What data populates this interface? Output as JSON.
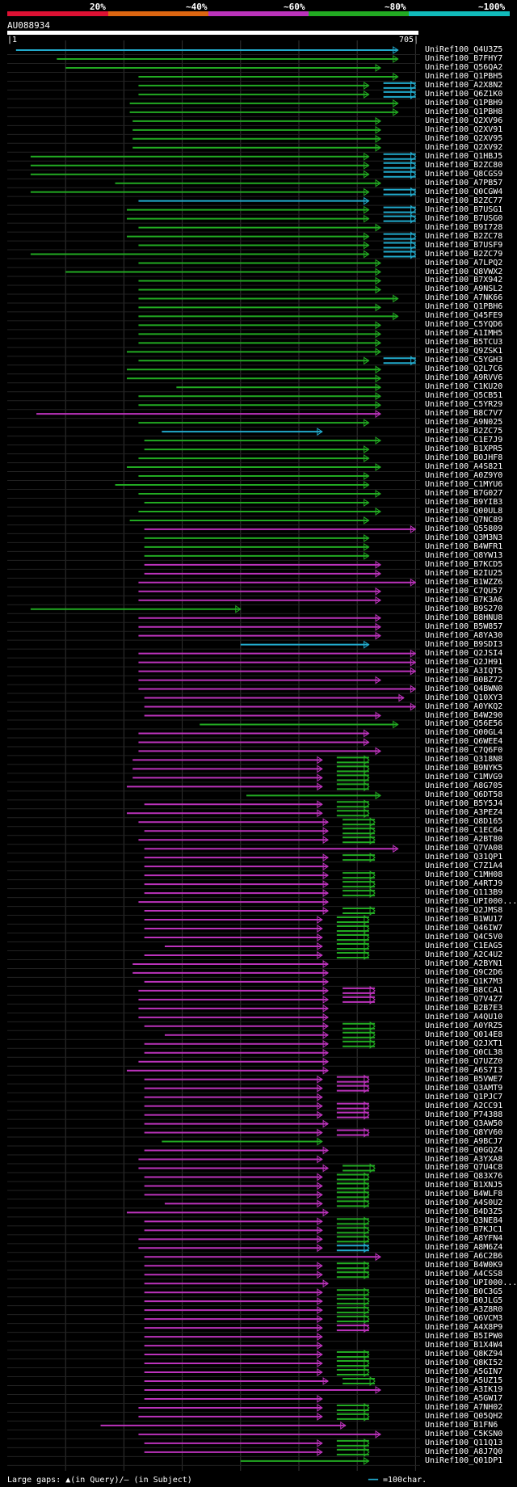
{
  "header": {
    "percent_labels": [
      "20%",
      "~40%",
      "~60%",
      "~80%",
      "~100%"
    ],
    "colors": {
      "green": "#22aa22",
      "magenta": "#bb33bb",
      "cyan": "#22aacc",
      "red": "#dd1133",
      "orange": "#dd6611",
      "teal": "#11bbbb",
      "gridline": "#333333"
    },
    "query_id": "AU088934",
    "start_tick": "|1",
    "end_tick": "705|"
  },
  "query_length": 705,
  "hits": [
    {
      "id": "UniRef100_Q4U3Z5",
      "color": "cyan",
      "start": 15,
      "end": 670
    },
    {
      "id": "UniRef100_B7FHY7",
      "color": "green",
      "start": 85,
      "end": 670
    },
    {
      "id": "UniRef100_Q56QA2",
      "color": "green",
      "start": 100,
      "end": 640
    },
    {
      "id": "UniRef100_Q1PBH5",
      "color": "green",
      "start": 225,
      "end": 670
    },
    {
      "id": "UniRef100_A2X8N2",
      "color": "green",
      "start": 225,
      "end": 620,
      "ext": "cyan"
    },
    {
      "id": "UniRef100_Q6Z1K0",
      "color": "green",
      "start": 225,
      "end": 620,
      "ext": "cyan"
    },
    {
      "id": "UniRef100_Q1PBH9",
      "color": "green",
      "start": 210,
      "end": 670
    },
    {
      "id": "UniRef100_Q1PBH8",
      "color": "green",
      "start": 210,
      "end": 670
    },
    {
      "id": "UniRef100_Q2XV96",
      "color": "green",
      "start": 215,
      "end": 640
    },
    {
      "id": "UniRef100_Q2XV91",
      "color": "green",
      "start": 215,
      "end": 640
    },
    {
      "id": "UniRef100_Q2XV95",
      "color": "green",
      "start": 215,
      "end": 640
    },
    {
      "id": "UniRef100_Q2XV92",
      "color": "green",
      "start": 215,
      "end": 640
    },
    {
      "id": "UniRef100_Q1HBJ5",
      "color": "green",
      "start": 40,
      "end": 620,
      "ext": "cyan"
    },
    {
      "id": "UniRef100_B2ZC80",
      "color": "green",
      "start": 40,
      "end": 620,
      "ext": "cyan"
    },
    {
      "id": "UniRef100_Q8CGS9",
      "color": "green",
      "start": 40,
      "end": 620,
      "ext": "cyan"
    },
    {
      "id": "UniRef100_A7PB57",
      "color": "green",
      "start": 185,
      "end": 640
    },
    {
      "id": "UniRef100_Q0CGW4",
      "color": "green",
      "start": 40,
      "end": 620,
      "ext": "cyan"
    },
    {
      "id": "UniRef100_B2ZC77",
      "color": "cyan",
      "start": 225,
      "end": 620
    },
    {
      "id": "UniRef100_B7USG1",
      "color": "green",
      "start": 205,
      "end": 620,
      "ext": "cyan"
    },
    {
      "id": "UniRef100_B7USG0",
      "color": "green",
      "start": 205,
      "end": 620,
      "ext": "cyan"
    },
    {
      "id": "UniRef100_B9I728",
      "color": "green",
      "start": 225,
      "end": 640
    },
    {
      "id": "UniRef100_B2ZC78",
      "color": "green",
      "start": 205,
      "end": 620,
      "ext": "cyan"
    },
    {
      "id": "UniRef100_B7USF9",
      "color": "green",
      "start": 225,
      "end": 620,
      "ext": "cyan"
    },
    {
      "id": "UniRef100_B2ZC79",
      "color": "green",
      "start": 40,
      "end": 620,
      "ext": "cyan"
    },
    {
      "id": "UniRef100_A7LPQ2",
      "color": "green",
      "start": 225,
      "end": 640
    },
    {
      "id": "UniRef100_Q8VWX2",
      "color": "green",
      "start": 100,
      "end": 640
    },
    {
      "id": "UniRef100_B7X942",
      "color": "green",
      "start": 225,
      "end": 640
    },
    {
      "id": "UniRef100_A9NSL2",
      "color": "green",
      "start": 225,
      "end": 640
    },
    {
      "id": "UniRef100_A7NK66",
      "color": "green",
      "start": 225,
      "end": 670
    },
    {
      "id": "UniRef100_Q1PBH6",
      "color": "green",
      "start": 225,
      "end": 640
    },
    {
      "id": "UniRef100_Q45FE9",
      "color": "green",
      "start": 225,
      "end": 670
    },
    {
      "id": "UniRef100_C5YQD6",
      "color": "green",
      "start": 225,
      "end": 640
    },
    {
      "id": "UniRef100_A1IMH5",
      "color": "green",
      "start": 225,
      "end": 640
    },
    {
      "id": "UniRef100_B5TCU3",
      "color": "green",
      "start": 225,
      "end": 640
    },
    {
      "id": "UniRef100_Q9ZSK1",
      "color": "green",
      "start": 205,
      "end": 640
    },
    {
      "id": "UniRef100_C5YGH3",
      "color": "green",
      "start": 225,
      "end": 620,
      "ext": "cyan"
    },
    {
      "id": "UniRef100_Q2L7C6",
      "color": "green",
      "start": 205,
      "end": 640
    },
    {
      "id": "UniRef100_A9RVV6",
      "color": "green",
      "start": 205,
      "end": 640
    },
    {
      "id": "UniRef100_C1KU20",
      "color": "green",
      "start": 290,
      "end": 640
    },
    {
      "id": "UniRef100_Q5CB51",
      "color": "green",
      "start": 225,
      "end": 640
    },
    {
      "id": "UniRef100_C5YR29",
      "color": "green",
      "start": 225,
      "end": 640
    },
    {
      "id": "UniRef100_B8C7V7",
      "color": "magenta",
      "start": 50,
      "end": 640
    },
    {
      "id": "UniRef100_A9N025",
      "color": "green",
      "start": 225,
      "end": 620
    },
    {
      "id": "UniRef100_B2ZC75",
      "color": "cyan",
      "start": 265,
      "end": 540
    },
    {
      "id": "UniRef100_C1E7J9",
      "color": "green",
      "start": 235,
      "end": 640
    },
    {
      "id": "UniRef100_B1XPR5",
      "color": "green",
      "start": 235,
      "end": 620
    },
    {
      "id": "UniRef100_B0JHF8",
      "color": "green",
      "start": 225,
      "end": 620
    },
    {
      "id": "UniRef100_A4S821",
      "color": "green",
      "start": 205,
      "end": 640
    },
    {
      "id": "UniRef100_A0Z9Y0",
      "color": "green",
      "start": 225,
      "end": 620
    },
    {
      "id": "UniRef100_C1MYU6",
      "color": "green",
      "start": 185,
      "end": 620
    },
    {
      "id": "UniRef100_B7G027",
      "color": "green",
      "start": 225,
      "end": 640
    },
    {
      "id": "UniRef100_B9YIB3",
      "color": "green",
      "start": 235,
      "end": 620
    },
    {
      "id": "UniRef100_Q00UL8",
      "color": "green",
      "start": 225,
      "end": 640
    },
    {
      "id": "UniRef100_Q7NC89",
      "color": "green",
      "start": 210,
      "end": 620
    },
    {
      "id": "UniRef100_Q55809",
      "color": "magenta",
      "start": 235,
      "end": 700
    },
    {
      "id": "UniRef100_Q3M3N3",
      "color": "green",
      "start": 235,
      "end": 620
    },
    {
      "id": "UniRef100_B4WFR1",
      "color": "green",
      "start": 235,
      "end": 620
    },
    {
      "id": "UniRef100_Q8YW13",
      "color": "green",
      "start": 235,
      "end": 620
    },
    {
      "id": "UniRef100_B7KCD5",
      "color": "magenta",
      "start": 235,
      "end": 640
    },
    {
      "id": "UniRef100_B2IU25",
      "color": "magenta",
      "start": 235,
      "end": 640
    },
    {
      "id": "UniRef100_B1WZZ6",
      "color": "magenta",
      "start": 225,
      "end": 700
    },
    {
      "id": "UniRef100_C7QU57",
      "color": "magenta",
      "start": 225,
      "end": 640
    },
    {
      "id": "UniRef100_B7K3A6",
      "color": "magenta",
      "start": 225,
      "end": 640
    },
    {
      "id": "UniRef100_B9S270",
      "color": "green",
      "start": 40,
      "end": 400
    },
    {
      "id": "UniRef100_B8HNU8",
      "color": "magenta",
      "start": 225,
      "end": 640
    },
    {
      "id": "UniRef100_B5W857",
      "color": "magenta",
      "start": 225,
      "end": 640
    },
    {
      "id": "UniRef100_A8YA30",
      "color": "magenta",
      "start": 225,
      "end": 640
    },
    {
      "id": "UniRef100_B9SDI3",
      "color": "cyan",
      "start": 400,
      "end": 620
    },
    {
      "id": "UniRef100_Q2JSI4",
      "color": "magenta",
      "start": 225,
      "end": 700
    },
    {
      "id": "UniRef100_Q2JH91",
      "color": "magenta",
      "start": 225,
      "end": 700
    },
    {
      "id": "UniRef100_A3IQT5",
      "color": "magenta",
      "start": 225,
      "end": 700
    },
    {
      "id": "UniRef100_B0BZ72",
      "color": "magenta",
      "start": 225,
      "end": 640
    },
    {
      "id": "UniRef100_Q4BWN0",
      "color": "magenta",
      "start": 225,
      "end": 700
    },
    {
      "id": "UniRef100_Q10XY3",
      "color": "magenta",
      "start": 235,
      "end": 680
    },
    {
      "id": "UniRef100_A0YKQ2",
      "color": "magenta",
      "start": 235,
      "end": 700
    },
    {
      "id": "UniRef100_B4W290",
      "color": "magenta",
      "start": 235,
      "end": 640
    },
    {
      "id": "UniRef100_Q56E56",
      "color": "green",
      "start": 330,
      "end": 670
    },
    {
      "id": "UniRef100_Q00GL4",
      "color": "magenta",
      "start": 225,
      "end": 620
    },
    {
      "id": "UniRef100_Q6WEE4",
      "color": "magenta",
      "start": 225,
      "end": 620
    },
    {
      "id": "UniRef100_C7Q6F0",
      "color": "magenta",
      "start": 225,
      "end": 640
    },
    {
      "id": "UniRef100_Q318N8",
      "color": "magenta",
      "start": 215,
      "end": 540,
      "ext": "green"
    },
    {
      "id": "UniRef100_B9NYK5",
      "color": "magenta",
      "start": 215,
      "end": 540,
      "ext": "green"
    },
    {
      "id": "UniRef100_C1MVG9",
      "color": "magenta",
      "start": 215,
      "end": 540,
      "ext": "green"
    },
    {
      "id": "UniRef100_A8G705",
      "color": "magenta",
      "start": 205,
      "end": 540,
      "ext": "green"
    },
    {
      "id": "UniRef100_Q6DT58",
      "color": "green",
      "start": 410,
      "end": 640
    },
    {
      "id": "UniRef100_B5Y5J4",
      "color": "magenta",
      "start": 235,
      "end": 540,
      "ext": "green"
    },
    {
      "id": "UniRef100_A3PEZ4",
      "color": "magenta",
      "start": 205,
      "end": 540,
      "ext": "green"
    },
    {
      "id": "UniRef100_Q8D165",
      "color": "magenta",
      "start": 225,
      "end": 550,
      "ext": "green"
    },
    {
      "id": "UniRef100_C1EC64",
      "color": "magenta",
      "start": 235,
      "end": 550,
      "ext": "green"
    },
    {
      "id": "UniRef100_A2BT80",
      "color": "magenta",
      "start": 225,
      "end": 550,
      "ext": "green"
    },
    {
      "id": "UniRef100_Q7VA08",
      "color": "magenta",
      "start": 235,
      "end": 670
    },
    {
      "id": "UniRef100_Q31QP1",
      "color": "magenta",
      "start": 235,
      "end": 550,
      "ext": "green"
    },
    {
      "id": "UniRef100_C7Z1A4",
      "color": "magenta",
      "start": 235,
      "end": 550
    },
    {
      "id": "UniRef100_C1MH08",
      "color": "magenta",
      "start": 235,
      "end": 550,
      "ext": "green"
    },
    {
      "id": "UniRef100_A4RTJ9",
      "color": "magenta",
      "start": 235,
      "end": 550,
      "ext": "green"
    },
    {
      "id": "UniRef100_Q113B9",
      "color": "magenta",
      "start": 235,
      "end": 550,
      "ext": "green"
    },
    {
      "id": "UniRef100_UPI000...",
      "color": "magenta",
      "start": 225,
      "end": 550
    },
    {
      "id": "UniRef100_Q2JMS8",
      "color": "magenta",
      "start": 235,
      "end": 550,
      "ext": "green"
    },
    {
      "id": "UniRef100_B1WU17",
      "color": "magenta",
      "start": 235,
      "end": 540,
      "ext": "green"
    },
    {
      "id": "UniRef100_Q46IW7",
      "color": "magenta",
      "start": 235,
      "end": 540,
      "ext": "green"
    },
    {
      "id": "UniRef100_Q4C5V0",
      "color": "magenta",
      "start": 235,
      "end": 540,
      "ext": "green"
    },
    {
      "id": "UniRef100_C1EAG5",
      "color": "magenta",
      "start": 270,
      "end": 540,
      "ext": "green"
    },
    {
      "id": "UniRef100_A2C4U2",
      "color": "magenta",
      "start": 235,
      "end": 540,
      "ext": "green"
    },
    {
      "id": "UniRef100_A2BYN1",
      "color": "magenta",
      "start": 215,
      "end": 550
    },
    {
      "id": "UniRef100_Q9C2D6",
      "color": "magenta",
      "start": 215,
      "end": 550
    },
    {
      "id": "UniRef100_Q1K7M3",
      "color": "magenta",
      "start": 235,
      "end": 550
    },
    {
      "id": "UniRef100_B8CCA1",
      "color": "magenta",
      "start": 225,
      "end": 550,
      "ext": "magenta"
    },
    {
      "id": "UniRef100_Q7V4Z7",
      "color": "magenta",
      "start": 225,
      "end": 550,
      "ext": "magenta"
    },
    {
      "id": "UniRef100_B2B7E3",
      "color": "magenta",
      "start": 225,
      "end": 550
    },
    {
      "id": "UniRef100_A4QU10",
      "color": "magenta",
      "start": 225,
      "end": 550
    },
    {
      "id": "UniRef100_A0YRZ5",
      "color": "magenta",
      "start": 235,
      "end": 550,
      "ext": "green"
    },
    {
      "id": "UniRef100_Q014E8",
      "color": "magenta",
      "start": 270,
      "end": 550,
      "ext": "green"
    },
    {
      "id": "UniRef100_Q2JXT1",
      "color": "magenta",
      "start": 235,
      "end": 550,
      "ext": "green"
    },
    {
      "id": "UniRef100_Q0CL38",
      "color": "magenta",
      "start": 235,
      "end": 550
    },
    {
      "id": "UniRef100_Q7UZZ0",
      "color": "magenta",
      "start": 225,
      "end": 550
    },
    {
      "id": "UniRef100_A6S7I3",
      "color": "magenta",
      "start": 205,
      "end": 550
    },
    {
      "id": "UniRef100_B5VWE7",
      "color": "magenta",
      "start": 235,
      "end": 540,
      "ext": "magenta"
    },
    {
      "id": "UniRef100_Q3AMT9",
      "color": "magenta",
      "start": 235,
      "end": 540,
      "ext": "magenta"
    },
    {
      "id": "UniRef100_Q1PJC7",
      "color": "magenta",
      "start": 235,
      "end": 540
    },
    {
      "id": "UniRef100_A2CC91",
      "color": "magenta",
      "start": 235,
      "end": 540,
      "ext": "magenta"
    },
    {
      "id": "UniRef100_P74388",
      "color": "magenta",
      "start": 235,
      "end": 540,
      "ext": "magenta"
    },
    {
      "id": "UniRef100_Q3AW50",
      "color": "magenta",
      "start": 235,
      "end": 550
    },
    {
      "id": "UniRef100_Q8YV60",
      "color": "magenta",
      "start": 235,
      "end": 540,
      "ext": "magenta"
    },
    {
      "id": "UniRef100_A9BCJ7",
      "color": "green",
      "start": 265,
      "end": 540
    },
    {
      "id": "UniRef100_Q0GQZ4",
      "color": "magenta",
      "start": 235,
      "end": 550
    },
    {
      "id": "UniRef100_A3YXA8",
      "color": "magenta",
      "start": 225,
      "end": 540
    },
    {
      "id": "UniRef100_Q7U4C8",
      "color": "magenta",
      "start": 225,
      "end": 550,
      "ext": "green"
    },
    {
      "id": "UniRef100_Q83X76",
      "color": "magenta",
      "start": 235,
      "end": 540,
      "ext": "green"
    },
    {
      "id": "UniRef100_B1XNJ5",
      "color": "magenta",
      "start": 235,
      "end": 540,
      "ext": "green"
    },
    {
      "id": "UniRef100_B4WLF8",
      "color": "magenta",
      "start": 235,
      "end": 540,
      "ext": "green"
    },
    {
      "id": "UniRef100_A4S0U2",
      "color": "magenta",
      "start": 270,
      "end": 540,
      "ext": "green"
    },
    {
      "id": "UniRef100_B4D3Z5",
      "color": "magenta",
      "start": 205,
      "end": 550
    },
    {
      "id": "UniRef100_Q3NE84",
      "color": "magenta",
      "start": 235,
      "end": 540,
      "ext": "green"
    },
    {
      "id": "UniRef100_B7KJC1",
      "color": "magenta",
      "start": 235,
      "end": 540,
      "ext": "green"
    },
    {
      "id": "UniRef100_A8YFN4",
      "color": "magenta",
      "start": 225,
      "end": 540,
      "ext": "green"
    },
    {
      "id": "UniRef100_A8M6Z4",
      "color": "magenta",
      "start": 225,
      "end": 540,
      "ext": "cyan"
    },
    {
      "id": "UniRef100_A6C2B6",
      "color": "magenta",
      "start": 235,
      "end": 640
    },
    {
      "id": "UniRef100_B4W0K9",
      "color": "magenta",
      "start": 235,
      "end": 540,
      "ext": "green"
    },
    {
      "id": "UniRef100_A4CSS8",
      "color": "magenta",
      "start": 235,
      "end": 540,
      "ext": "green"
    },
    {
      "id": "UniRef100_UPI000...",
      "color": "magenta",
      "start": 235,
      "end": 550
    },
    {
      "id": "UniRef100_B0C3G5",
      "color": "magenta",
      "start": 235,
      "end": 540,
      "ext": "green"
    },
    {
      "id": "UniRef100_B0JLG5",
      "color": "magenta",
      "start": 235,
      "end": 540,
      "ext": "green"
    },
    {
      "id": "UniRef100_A3Z8R0",
      "color": "magenta",
      "start": 235,
      "end": 540,
      "ext": "green"
    },
    {
      "id": "UniRef100_Q6VCM3",
      "color": "magenta",
      "start": 235,
      "end": 540,
      "ext": "green"
    },
    {
      "id": "UniRef100_A4X8P9",
      "color": "magenta",
      "start": 235,
      "end": 540,
      "ext": "magenta"
    },
    {
      "id": "UniRef100_B5IPW0",
      "color": "magenta",
      "start": 235,
      "end": 540
    },
    {
      "id": "UniRef100_B1X4W4",
      "color": "magenta",
      "start": 235,
      "end": 540
    },
    {
      "id": "UniRef100_Q8KZ94",
      "color": "magenta",
      "start": 235,
      "end": 540,
      "ext": "green"
    },
    {
      "id": "UniRef100_Q8KI52",
      "color": "magenta",
      "start": 235,
      "end": 540,
      "ext": "green"
    },
    {
      "id": "UniRef100_A5GIN7",
      "color": "magenta",
      "start": 235,
      "end": 540,
      "ext": "green"
    },
    {
      "id": "UniRef100_A5UZ15",
      "color": "magenta",
      "start": 235,
      "end": 550,
      "ext": "green"
    },
    {
      "id": "UniRef100_A3IK19",
      "color": "magenta",
      "start": 235,
      "end": 640
    },
    {
      "id": "UniRef100_A5GW17",
      "color": "magenta",
      "start": 235,
      "end": 540
    },
    {
      "id": "UniRef100_A7NH02",
      "color": "magenta",
      "start": 225,
      "end": 540,
      "ext": "green"
    },
    {
      "id": "UniRef100_Q05QH2",
      "color": "magenta",
      "start": 225,
      "end": 540,
      "ext": "green"
    },
    {
      "id": "UniRef100_B1FN6",
      "color": "magenta",
      "start": 160,
      "end": 580
    },
    {
      "id": "UniRef100_C5KSN0",
      "color": "magenta",
      "start": 225,
      "end": 640
    },
    {
      "id": "UniRef100_Q11Q13",
      "color": "magenta",
      "start": 235,
      "end": 540,
      "ext": "green"
    },
    {
      "id": "UniRef100_A8J7Q0",
      "color": "magenta",
      "start": 235,
      "end": 540,
      "ext": "green"
    },
    {
      "id": "UniRef100_Q01DP1",
      "color": "green",
      "start": 400,
      "end": 620
    }
  ],
  "footer": {
    "large_gaps": "Large gaps: ▲(in Query)/— (in Subject)",
    "legend_text": "=100char."
  }
}
